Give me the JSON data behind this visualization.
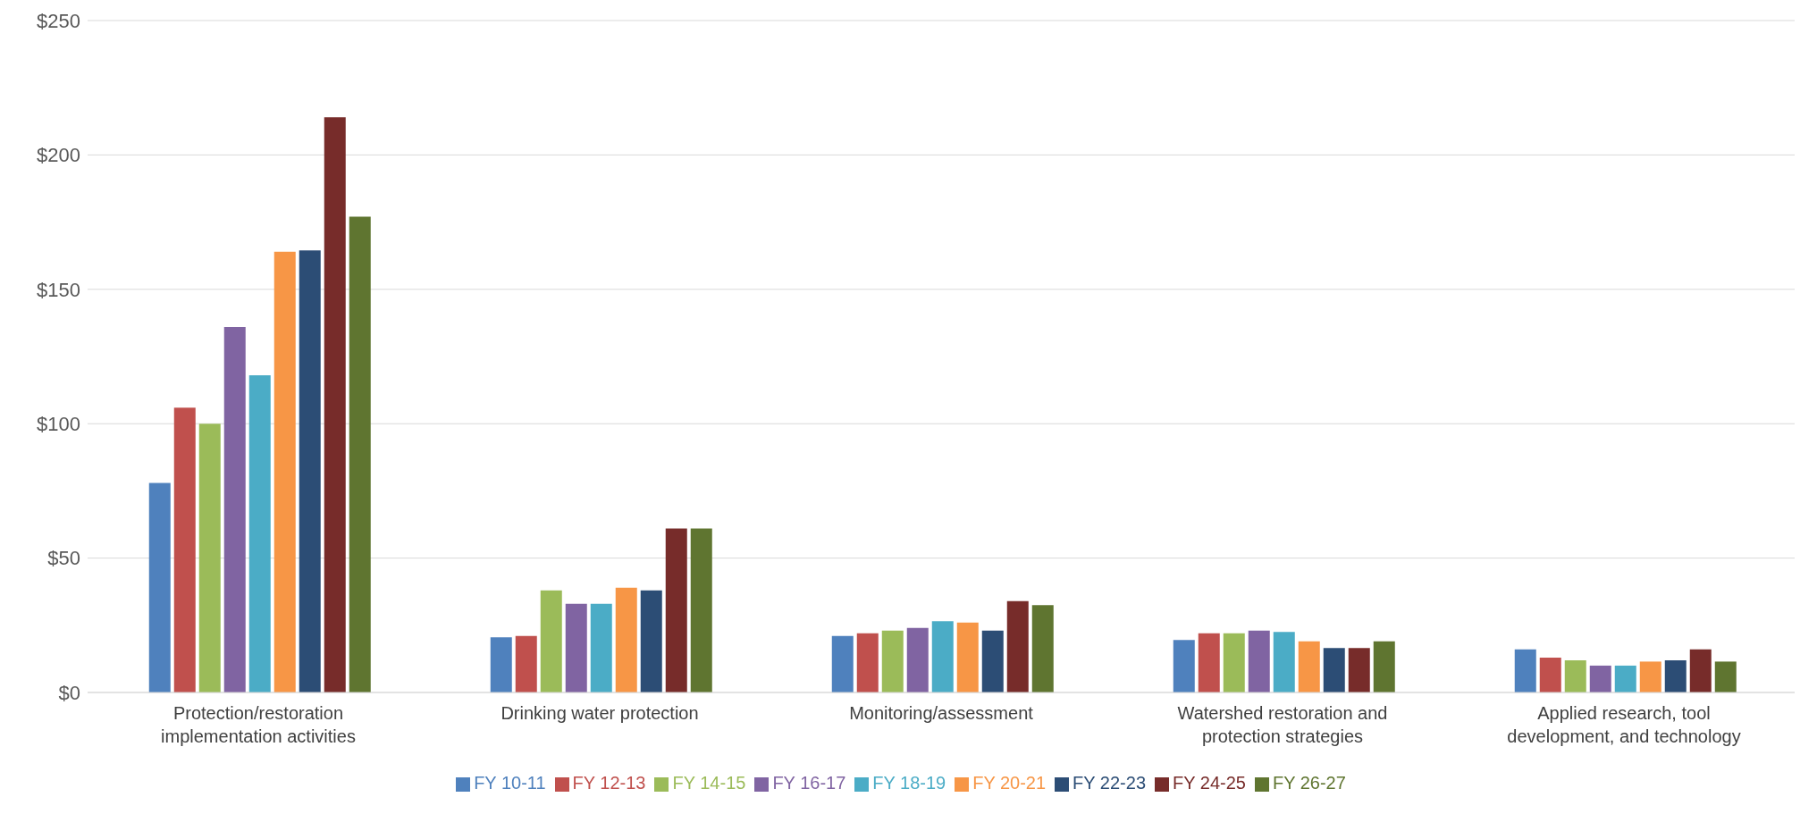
{
  "chart_data": {
    "type": "bar",
    "categories": [
      "Protection/restoration implementation activities",
      "Drinking water protection",
      "Monitoring/assessment",
      "Watershed restoration and protection strategies",
      "Applied research, tool development, and technology"
    ],
    "series": [
      {
        "name": "FY 10-11",
        "color": "#4f81bd",
        "values": [
          78,
          20.5,
          21,
          19.5,
          16
        ]
      },
      {
        "name": "FY 12-13",
        "color": "#c0504d",
        "values": [
          106,
          21,
          22,
          22,
          13
        ]
      },
      {
        "name": "FY 14-15",
        "color": "#9bbb59",
        "values": [
          100,
          38,
          23,
          22,
          12
        ]
      },
      {
        "name": "FY 16-17",
        "color": "#8064a2",
        "values": [
          136,
          33,
          24,
          23,
          10
        ]
      },
      {
        "name": "FY 18-19",
        "color": "#4bacc6",
        "values": [
          118,
          33,
          26.5,
          22.5,
          10
        ]
      },
      {
        "name": "FY 20-21",
        "color": "#f79646",
        "values": [
          164,
          39,
          26,
          19,
          11.5
        ]
      },
      {
        "name": "FY 22-23",
        "color": "#2c4d75",
        "values": [
          164.5,
          38,
          23,
          16.5,
          12
        ]
      },
      {
        "name": "FY 24-25",
        "color": "#772c2a",
        "values": [
          214,
          61,
          34,
          16.5,
          16
        ]
      },
      {
        "name": "FY 26-27",
        "color": "#5f7530",
        "values": [
          177,
          61,
          32.5,
          19,
          11.5
        ]
      }
    ],
    "ylim": [
      0,
      250
    ],
    "yticks": [
      {
        "value": 0,
        "label": "$0"
      },
      {
        "value": 50,
        "label": "$50"
      },
      {
        "value": 100,
        "label": "$100"
      },
      {
        "value": 150,
        "label": "$150"
      },
      {
        "value": 200,
        "label": "$200"
      },
      {
        "value": 250,
        "label": "$250"
      }
    ],
    "grid": "y",
    "legend": "bottom"
  }
}
